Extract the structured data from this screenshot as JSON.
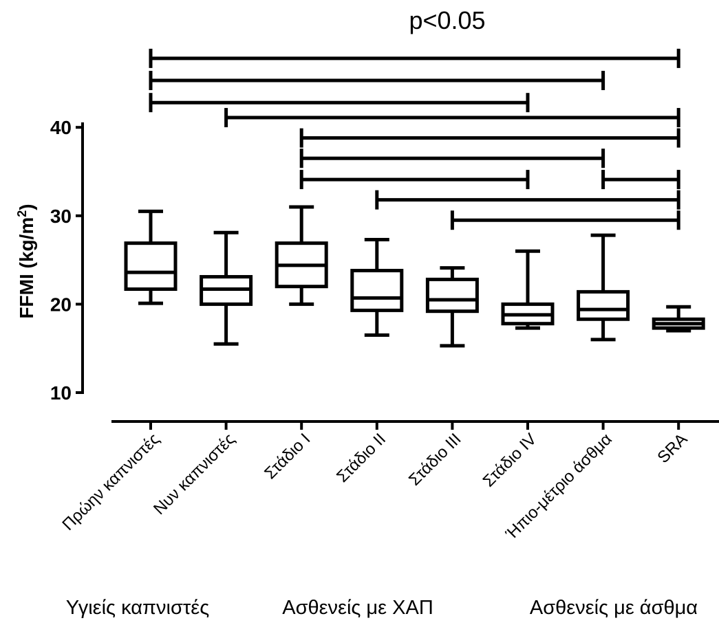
{
  "chart_data": {
    "type": "boxplot",
    "title": "",
    "annotation": "p<0.05",
    "ylabel": "FFMI (kg/m",
    "ylabel_sup": "2",
    "ylabel_close": ")",
    "xlabel": "",
    "ylim": [
      10,
      45
    ],
    "yticks": [
      10,
      20,
      30,
      40
    ],
    "grid": false,
    "categories": [
      "Πρώην καπνιστές",
      "Νυν καπνιστές",
      "Στάδιο Ι",
      "Στάδιο ΙΙ",
      "Στάδιο ΙΙΙ",
      "Στάδιο ΙV",
      "Ήπιο-μέτριο άσθμα",
      "SRA"
    ],
    "boxes": [
      {
        "min": 20.1,
        "q1": 21.7,
        "median": 23.6,
        "q3": 26.9,
        "max": 30.5
      },
      {
        "min": 15.5,
        "q1": 20.0,
        "median": 21.7,
        "q3": 23.1,
        "max": 28.1
      },
      {
        "min": 20.0,
        "q1": 22.0,
        "median": 24.4,
        "q3": 26.9,
        "max": 31.0
      },
      {
        "min": 16.5,
        "q1": 19.3,
        "median": 20.7,
        "q3": 23.8,
        "max": 27.3
      },
      {
        "min": 15.3,
        "q1": 19.2,
        "median": 20.5,
        "q3": 22.8,
        "max": 24.1
      },
      {
        "min": 17.3,
        "q1": 17.8,
        "median": 18.8,
        "q3": 20.0,
        "max": 26.0
      },
      {
        "min": 16.0,
        "q1": 18.3,
        "median": 19.4,
        "q3": 21.4,
        "max": 27.8
      },
      {
        "min": 17.0,
        "q1": 17.3,
        "median": 17.8,
        "q3": 18.3,
        "max": 19.7
      }
    ],
    "comparisons": [
      {
        "from": 0,
        "to": 7,
        "y": 47.8
      },
      {
        "from": 0,
        "to": 6,
        "y": 45.3
      },
      {
        "from": 0,
        "to": 5,
        "y": 42.8
      },
      {
        "from": 1,
        "to": 7,
        "y": 41.1
      },
      {
        "from": 2,
        "to": 7,
        "y": 38.8
      },
      {
        "from": 2,
        "to": 6,
        "y": 36.5
      },
      {
        "from": 2,
        "to": 5,
        "y": 34.1
      },
      {
        "from": 6,
        "to": 7,
        "y": 34.1
      },
      {
        "from": 3,
        "to": 7,
        "y": 31.8
      },
      {
        "from": 4,
        "to": 7,
        "y": 29.5
      }
    ],
    "groups": [
      {
        "label": "Υγιείς καπνιστές",
        "categories": [
          0,
          1
        ]
      },
      {
        "label": "Ασθενείς με ΧΑΠ",
        "categories": [
          2,
          3,
          4,
          5
        ]
      },
      {
        "label": "Ασθενείς με άσθμα",
        "categories": [
          6,
          7
        ]
      }
    ]
  }
}
